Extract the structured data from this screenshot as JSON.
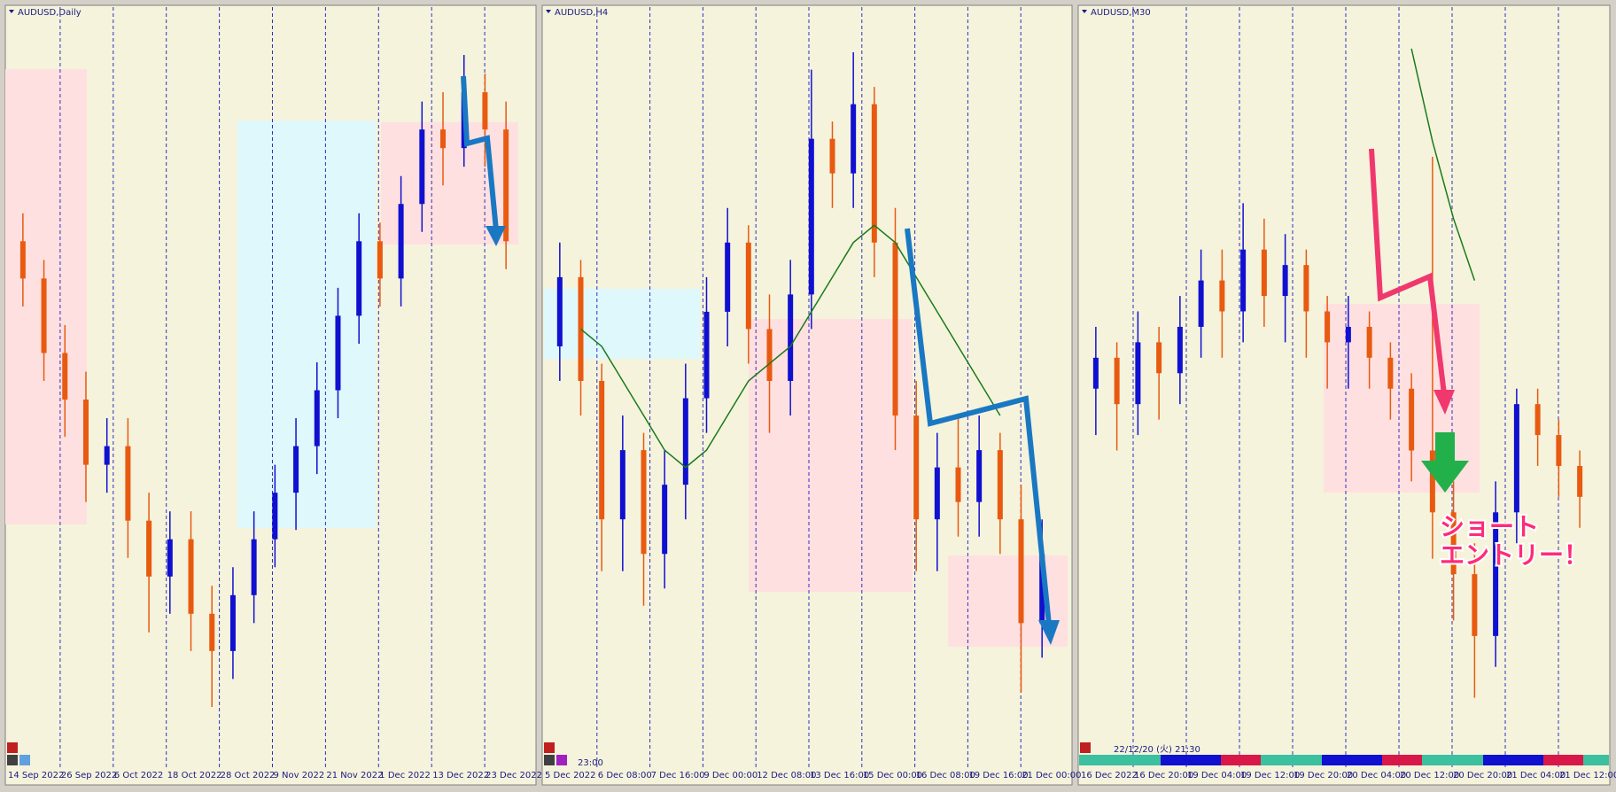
{
  "panels": [
    {
      "title": "AUDUSD,Daily",
      "type": "candlestick",
      "x_labels": [
        "14 Sep 2022",
        "26 Sep 2022",
        "6 Oct 2022",
        "18 Oct 2022",
        "28 Oct 2022",
        "9 Nov 2022",
        "21 Nov 2022",
        "1 Dec 2022",
        "13 Dec 2022",
        "23 Dec 2022"
      ],
      "open": [
        0.672,
        0.668,
        0.66,
        0.655,
        0.648,
        0.65,
        0.642,
        0.636,
        0.64,
        0.632,
        0.628,
        0.634,
        0.64,
        0.645,
        0.65,
        0.656,
        0.664,
        0.672,
        0.668,
        0.676,
        0.684,
        0.682,
        0.688,
        0.684
      ],
      "high": [
        0.675,
        0.67,
        0.663,
        0.658,
        0.653,
        0.653,
        0.645,
        0.643,
        0.643,
        0.635,
        0.637,
        0.643,
        0.648,
        0.653,
        0.659,
        0.667,
        0.675,
        0.674,
        0.679,
        0.687,
        0.688,
        0.692,
        0.69,
        0.687
      ],
      "low": [
        0.665,
        0.657,
        0.651,
        0.644,
        0.645,
        0.638,
        0.63,
        0.632,
        0.628,
        0.622,
        0.625,
        0.631,
        0.637,
        0.641,
        0.647,
        0.653,
        0.661,
        0.665,
        0.665,
        0.673,
        0.678,
        0.68,
        0.68,
        0.669
      ],
      "close": [
        0.668,
        0.66,
        0.655,
        0.648,
        0.65,
        0.642,
        0.636,
        0.64,
        0.632,
        0.628,
        0.634,
        0.64,
        0.645,
        0.65,
        0.656,
        0.664,
        0.672,
        0.668,
        0.676,
        0.684,
        0.682,
        0.688,
        0.684,
        0.672
      ],
      "ylim": [
        0.618,
        0.696
      ]
    },
    {
      "title": "AUDUSD,H4",
      "type": "candlestick",
      "status": "23:00",
      "x_labels": [
        "5 Dec 2022",
        "6 Dec 08:00",
        "7 Dec 16:00",
        "9 Dec 00:00",
        "12 Dec 08:00",
        "13 Dec 16:00",
        "15 Dec 00:00",
        "16 Dec 08:00",
        "19 Dec 16:00",
        "21 Dec 00:00"
      ],
      "open": [
        0.678,
        0.682,
        0.676,
        0.668,
        0.672,
        0.666,
        0.67,
        0.675,
        0.68,
        0.684,
        0.679,
        0.676,
        0.681,
        0.69,
        0.688,
        0.692,
        0.684,
        0.674,
        0.668,
        0.671,
        0.669,
        0.672,
        0.668,
        0.662
      ],
      "high": [
        0.684,
        0.683,
        0.677,
        0.674,
        0.673,
        0.672,
        0.677,
        0.682,
        0.686,
        0.685,
        0.681,
        0.683,
        0.694,
        0.691,
        0.695,
        0.693,
        0.686,
        0.676,
        0.673,
        0.674,
        0.674,
        0.673,
        0.67,
        0.668
      ],
      "low": [
        0.676,
        0.674,
        0.665,
        0.665,
        0.663,
        0.664,
        0.668,
        0.673,
        0.678,
        0.677,
        0.673,
        0.674,
        0.679,
        0.686,
        0.686,
        0.682,
        0.672,
        0.665,
        0.665,
        0.667,
        0.667,
        0.666,
        0.658,
        0.66
      ],
      "close": [
        0.682,
        0.676,
        0.668,
        0.672,
        0.666,
        0.67,
        0.675,
        0.68,
        0.684,
        0.679,
        0.676,
        0.681,
        0.69,
        0.688,
        0.692,
        0.684,
        0.674,
        0.668,
        0.671,
        0.669,
        0.672,
        0.668,
        0.662,
        0.666
      ],
      "ma": [
        null,
        0.679,
        0.678,
        0.676,
        0.674,
        0.672,
        0.671,
        0.672,
        0.674,
        0.676,
        0.677,
        0.678,
        0.68,
        0.682,
        0.684,
        0.685,
        0.684,
        0.682,
        0.68,
        0.678,
        0.676,
        0.674,
        null,
        null
      ],
      "ylim": [
        0.655,
        0.697
      ]
    },
    {
      "title": "AUDUSD,M30",
      "type": "candlestick",
      "status": "22/12/20 (火) 21:30",
      "x_labels": [
        "16 Dec 2022",
        "16 Dec 20:00",
        "19 Dec 04:00",
        "19 Dec 12:00",
        "19 Dec 20:00",
        "20 Dec 04:00",
        "20 Dec 12:00",
        "20 Dec 20:00",
        "21 Dec 04:00",
        "21 Dec 12:00"
      ],
      "open": [
        0.668,
        0.67,
        0.667,
        0.671,
        0.669,
        0.672,
        0.675,
        0.673,
        0.677,
        0.674,
        0.676,
        0.673,
        0.671,
        0.672,
        0.67,
        0.668,
        0.664,
        0.66,
        0.656,
        0.652,
        0.66,
        0.667,
        0.665,
        0.663
      ],
      "high": [
        0.672,
        0.671,
        0.673,
        0.672,
        0.674,
        0.677,
        0.677,
        0.68,
        0.679,
        0.678,
        0.677,
        0.674,
        0.674,
        0.673,
        0.671,
        0.669,
        0.683,
        0.662,
        0.658,
        0.662,
        0.668,
        0.668,
        0.666,
        0.664
      ],
      "low": [
        0.665,
        0.664,
        0.665,
        0.666,
        0.667,
        0.67,
        0.67,
        0.671,
        0.672,
        0.671,
        0.67,
        0.668,
        0.668,
        0.668,
        0.666,
        0.662,
        0.657,
        0.653,
        0.648,
        0.65,
        0.658,
        0.663,
        0.661,
        0.659
      ],
      "close": [
        0.67,
        0.667,
        0.671,
        0.669,
        0.672,
        0.675,
        0.673,
        0.677,
        0.674,
        0.676,
        0.673,
        0.671,
        0.672,
        0.67,
        0.668,
        0.664,
        0.66,
        0.656,
        0.652,
        0.66,
        0.667,
        0.665,
        0.663,
        0.661
      ],
      "ma": [
        null,
        null,
        null,
        null,
        null,
        null,
        null,
        null,
        null,
        null,
        null,
        null,
        null,
        null,
        null,
        0.69,
        0.684,
        0.679,
        0.675,
        null,
        null,
        null,
        null,
        null
      ],
      "ylim": [
        0.645,
        0.692
      ]
    }
  ],
  "annotation": {
    "lines": [
      "ショート",
      "エントリー！"
    ]
  }
}
